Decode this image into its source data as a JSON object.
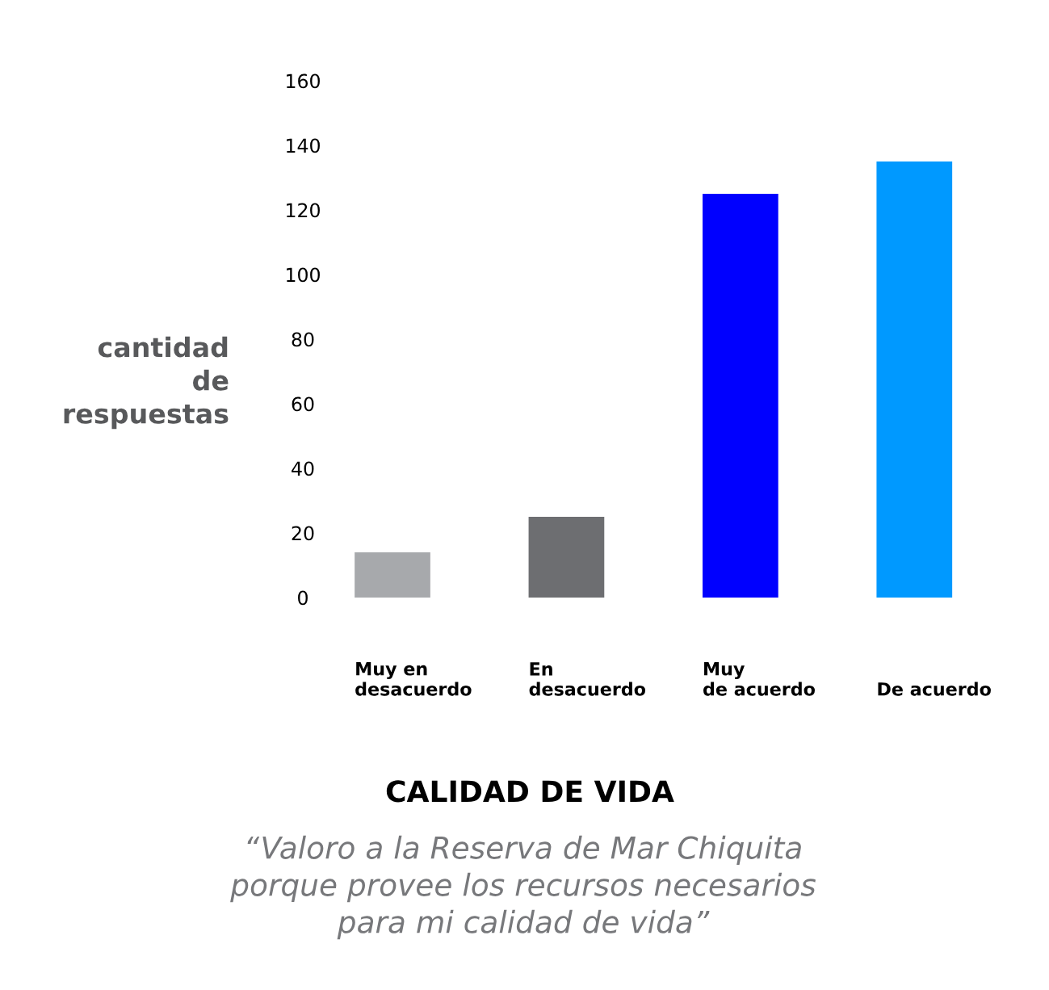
{
  "chart_data": {
    "type": "bar",
    "title": "CALIDAD DE VIDA",
    "subtitle": "“Valoro a la Reserva de Mar Chiquita\nporque provee los recursos necesarios\npara mi calidad de vida”",
    "ylabel": "cantidad\nde\nrespuestas",
    "categories": [
      "Muy en\ndesacuerdo",
      "En\ndesacuerdo",
      "Muy\nde acuerdo",
      "De acuerdo"
    ],
    "values": [
      14,
      25,
      125,
      135
    ],
    "colors": [
      "#a7a9ac",
      "#6d6e71",
      "#0000ff",
      "#0099ff"
    ],
    "ylim": [
      0,
      160
    ],
    "yticks": [
      0,
      20,
      40,
      60,
      80,
      100,
      120,
      140,
      160
    ],
    "grid": false
  }
}
